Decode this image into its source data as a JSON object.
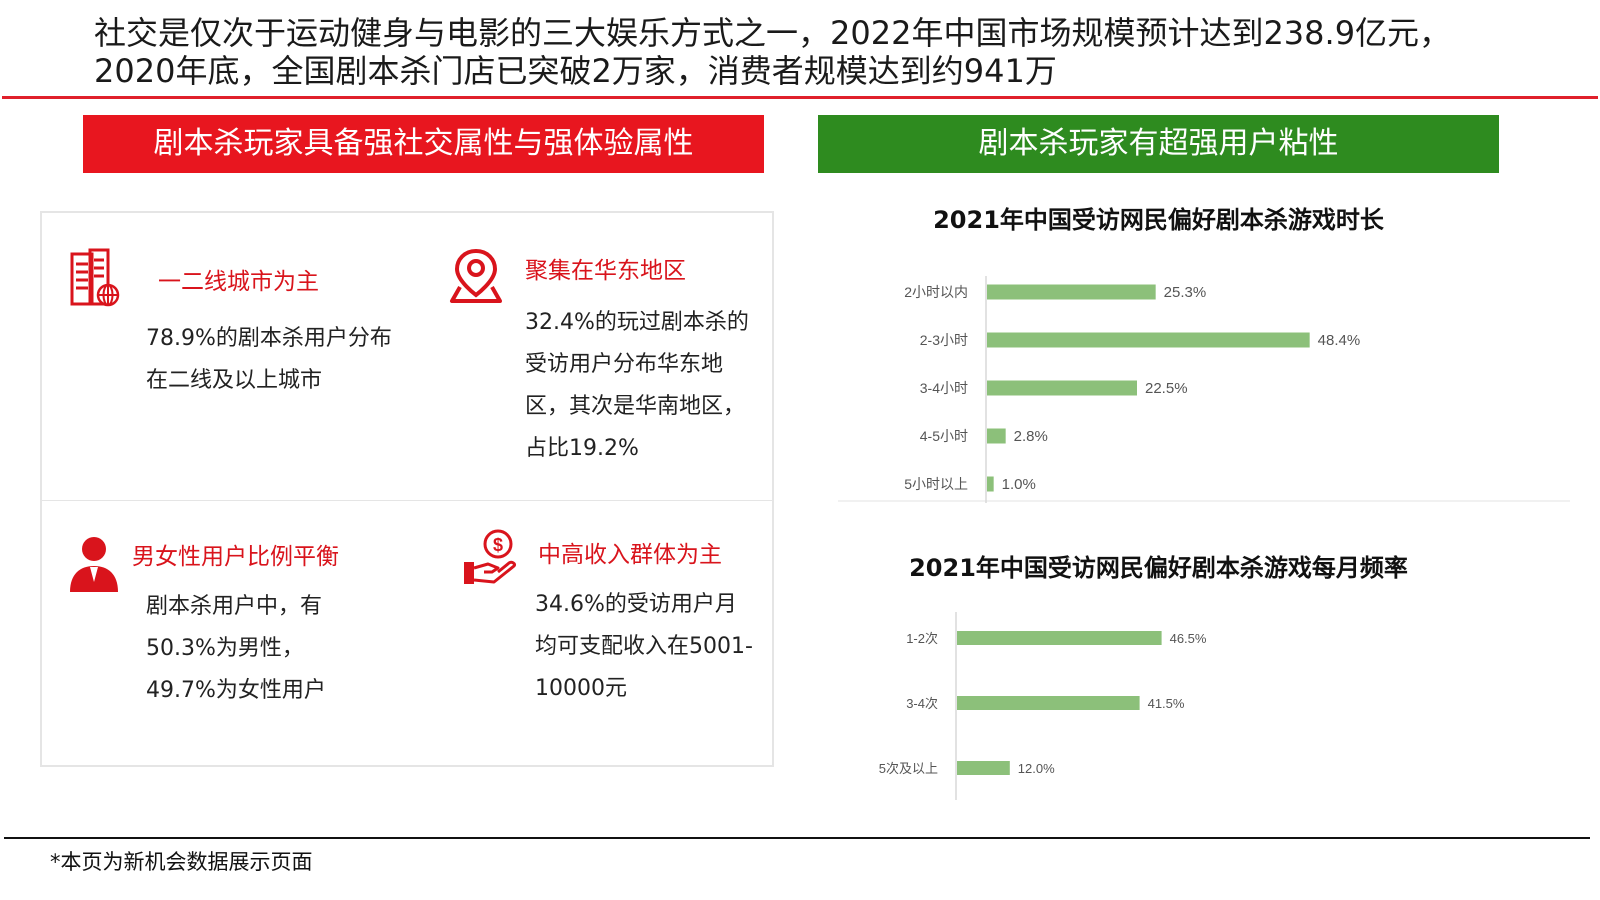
{
  "header": {
    "title": "社交是仅次于运动健身与电影的三大娱乐方式之一，2022年中国市场规模预计达到238.9亿元，2020年底，全国剧本杀门店已突破2万家，消费者规模达到约941万"
  },
  "left_panel": {
    "banner": "剧本杀玩家具备强社交属性与强体验属性",
    "banner_color": "#e8161f",
    "features": [
      {
        "icon": "city-buildings-icon",
        "title": "一二线城市为主",
        "body": "78.9%的剧本杀用户分布在二线及以上城市"
      },
      {
        "icon": "location-pin-icon",
        "title": "聚集在华东地区",
        "body": "32.4%的玩过剧本杀的受访用户分布华东地区，其次是华南地区，占比19.2%"
      },
      {
        "icon": "person-icon",
        "title": "男女性用户比例平衡",
        "body": "剧本杀用户中，有50.3%为男性，49.7%为女性用户"
      },
      {
        "icon": "money-hand-icon",
        "title": "中高收入群体为主",
        "body": "34.6%的受访用户月均可支配收入在5001-10000元"
      }
    ]
  },
  "right_panel": {
    "banner": "剧本杀玩家有超强用户粘性",
    "banner_color": "#2e8b1f"
  },
  "chart_data": [
    {
      "type": "bar",
      "orientation": "horizontal",
      "title": "2021年中国受访网民偏好剧本杀游戏时长",
      "categories": [
        "2小时以内",
        "2-3小时",
        "3-4小时",
        "4-5小时",
        "5小时以上"
      ],
      "values": [
        25.3,
        48.4,
        22.5,
        2.8,
        1.0
      ],
      "value_labels": [
        "25.3%",
        "48.4%",
        "22.5%",
        "2.8%",
        "1.0%"
      ],
      "unit": "%",
      "xlim": [
        0,
        60
      ],
      "bar_color": "#8cc07a",
      "grid": false
    },
    {
      "type": "bar",
      "orientation": "horizontal",
      "title": "2021年中国受访网民偏好剧本杀游戏每月频率",
      "categories": [
        "1-2次",
        "3-4次",
        "5次及以上"
      ],
      "values": [
        46.5,
        41.5,
        12.0
      ],
      "value_labels": [
        "46.5%",
        "41.5%",
        "12.0%"
      ],
      "unit": "%",
      "xlim": [
        0,
        60
      ],
      "bar_color": "#8cc07a",
      "grid": false
    }
  ],
  "footer": {
    "note": "*本页为新机会数据展示页面"
  }
}
